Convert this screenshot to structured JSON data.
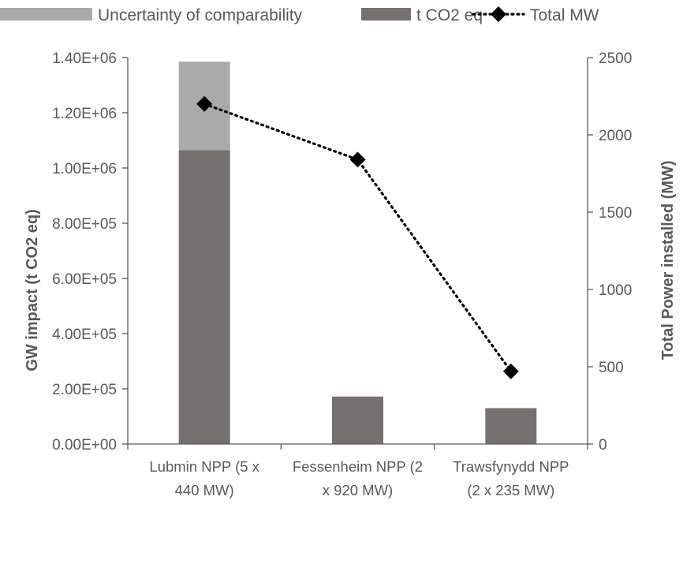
{
  "chart_data": {
    "type": "bar",
    "categories": [
      [
        "Lubmin NPP (5 x",
        "440 MW)"
      ],
      [
        "Fessenheim NPP (2",
        "x 920 MW)"
      ],
      [
        "Trawsfynydd NPP",
        "(2 x 235 MW)"
      ]
    ],
    "series": [
      {
        "name": "Uncertainty of comparability",
        "kind": "stacked-bar",
        "axis": "left",
        "color": "#aaaaaa",
        "values": [
          320000,
          0,
          0
        ]
      },
      {
        "name": "t CO2 eq",
        "kind": "stacked-bar",
        "axis": "left",
        "color": "#767171",
        "values": [
          1065000,
          172000,
          130000
        ]
      },
      {
        "name": "Total MW",
        "kind": "line",
        "axis": "right",
        "color": "#000000",
        "line_style": "dotted",
        "marker": "diamond",
        "values": [
          2200,
          1840,
          470
        ]
      }
    ],
    "ylabel": "GW impact (t CO2 eq)",
    "y2label": "Total Power installed (MW)",
    "ylim": [
      0,
      1400000
    ],
    "y2lim": [
      0,
      2500
    ],
    "yticks": [
      "0.00E+00",
      "2.00E+05",
      "4.00E+05",
      "6.00E+05",
      "8.00E+05",
      "1.00E+06",
      "1.20E+06",
      "1.40E+06"
    ],
    "y2ticks": [
      "0",
      "500",
      "1000",
      "1500",
      "2000",
      "2500"
    ],
    "legend_position": "top",
    "grid": false
  }
}
